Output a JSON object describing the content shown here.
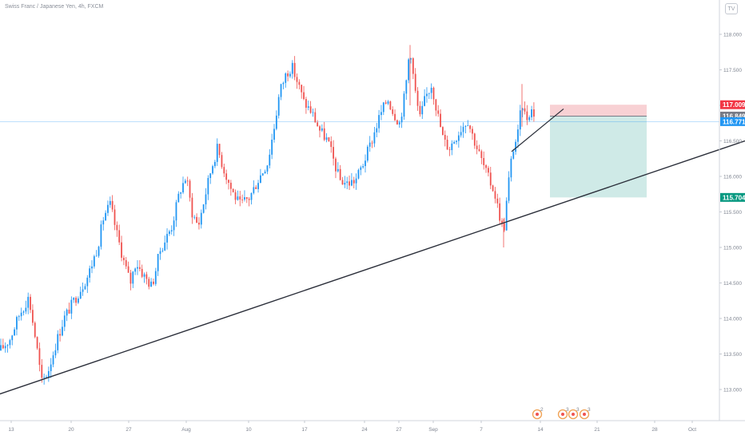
{
  "header": {
    "symbol_title": "Swiss Franc / Japanese Yen, 4h, FXCM",
    "logo_text": "TV"
  },
  "axes": {
    "y_ticks": [
      "118.000",
      "117.500",
      "117.000",
      "116.500",
      "116.000",
      "115.500",
      "115.000",
      "114.500",
      "114.000",
      "113.500",
      "113.000"
    ],
    "x_ticks": [
      "13",
      "20",
      "27",
      "Aug",
      "10",
      "17",
      "24",
      "27",
      "Sep",
      "7",
      "14",
      "21",
      "28",
      "Oct"
    ]
  },
  "price_labels": [
    {
      "text": "117.009",
      "color": "#f23645"
    },
    {
      "text": "116.849",
      "color": "#787b86"
    },
    {
      "text": "116.771",
      "color": "#2196f3"
    },
    {
      "text": "115.704",
      "color": "#089981"
    }
  ],
  "event_markers": [
    "2",
    "3",
    "3",
    "3"
  ],
  "colors": {
    "up": "#2196f3",
    "down": "#ef5350",
    "stop_zone": "#f7c9cc",
    "target_zone": "#bfe3df",
    "trendline": "#2a2e39",
    "current_price_line": "#2196f3"
  },
  "chart_data": {
    "type": "candlestick",
    "title": "Swiss Franc / Japanese Yen, 4h, FXCM",
    "ylim": [
      112.85,
      118.2
    ],
    "x_ticks": [
      "13",
      "20",
      "27",
      "Aug",
      "10",
      "17",
      "24",
      "27",
      "Sep",
      "7",
      "14",
      "21",
      "28",
      "Oct"
    ],
    "y_ticks": [
      118.0,
      117.5,
      117.0,
      116.5,
      116.0,
      115.5,
      115.0,
      114.5,
      114.0,
      113.5,
      113.0
    ],
    "price_path": [
      [
        0,
        113.55
      ],
      [
        12,
        113.7
      ],
      [
        24,
        114.05
      ],
      [
        36,
        114.3
      ],
      [
        46,
        113.6
      ],
      [
        52,
        113.1
      ],
      [
        60,
        113.25
      ],
      [
        70,
        113.65
      ],
      [
        80,
        114.0
      ],
      [
        95,
        114.3
      ],
      [
        110,
        114.6
      ],
      [
        122,
        115.0
      ],
      [
        130,
        115.45
      ],
      [
        138,
        115.6
      ],
      [
        146,
        115.2
      ],
      [
        155,
        114.8
      ],
      [
        163,
        114.5
      ],
      [
        170,
        114.8
      ],
      [
        180,
        114.6
      ],
      [
        190,
        114.45
      ],
      [
        200,
        114.95
      ],
      [
        215,
        115.3
      ],
      [
        225,
        115.8
      ],
      [
        233,
        116.0
      ],
      [
        240,
        115.5
      ],
      [
        248,
        115.3
      ],
      [
        256,
        115.7
      ],
      [
        264,
        116.1
      ],
      [
        272,
        116.4
      ],
      [
        280,
        116.1
      ],
      [
        290,
        115.8
      ],
      [
        300,
        115.6
      ],
      [
        312,
        115.7
      ],
      [
        325,
        116.0
      ],
      [
        335,
        116.2
      ],
      [
        343,
        116.7
      ],
      [
        350,
        117.2
      ],
      [
        358,
        117.45
      ],
      [
        365,
        117.55
      ],
      [
        373,
        117.3
      ],
      [
        380,
        117.05
      ],
      [
        390,
        116.9
      ],
      [
        400,
        116.65
      ],
      [
        410,
        116.5
      ],
      [
        418,
        116.2
      ],
      [
        425,
        115.95
      ],
      [
        435,
        115.9
      ],
      [
        445,
        115.95
      ],
      [
        455,
        116.2
      ],
      [
        465,
        116.5
      ],
      [
        475,
        116.85
      ],
      [
        485,
        117.1
      ],
      [
        492,
        116.9
      ],
      [
        500,
        116.75
      ],
      [
        507,
        117.2
      ],
      [
        513,
        117.85
      ],
      [
        518,
        117.3
      ],
      [
        525,
        116.8
      ],
      [
        532,
        117.1
      ],
      [
        540,
        117.3
      ],
      [
        547,
        116.9
      ],
      [
        555,
        116.5
      ],
      [
        562,
        116.4
      ],
      [
        570,
        116.55
      ],
      [
        578,
        116.7
      ],
      [
        585,
        116.8
      ],
      [
        592,
        116.55
      ],
      [
        600,
        116.3
      ],
      [
        610,
        116.0
      ],
      [
        618,
        115.8
      ],
      [
        624,
        115.5
      ],
      [
        630,
        115.2
      ],
      [
        636,
        115.9
      ],
      [
        641,
        116.35
      ],
      [
        648,
        116.6
      ],
      [
        653,
        117.05
      ],
      [
        658,
        116.8
      ],
      [
        664,
        116.95
      ],
      [
        670,
        116.85
      ]
    ],
    "trendline_lower": {
      "from": [
        -10,
        112.9
      ],
      "to": [
        932,
        116.5
      ]
    },
    "trendline_short": {
      "from": [
        640,
        116.35
      ],
      "to": [
        705,
        116.95
      ]
    },
    "position": {
      "type": "short",
      "entry": 116.849,
      "stop": 117.009,
      "target": 115.704,
      "current": 116.771
    }
  }
}
